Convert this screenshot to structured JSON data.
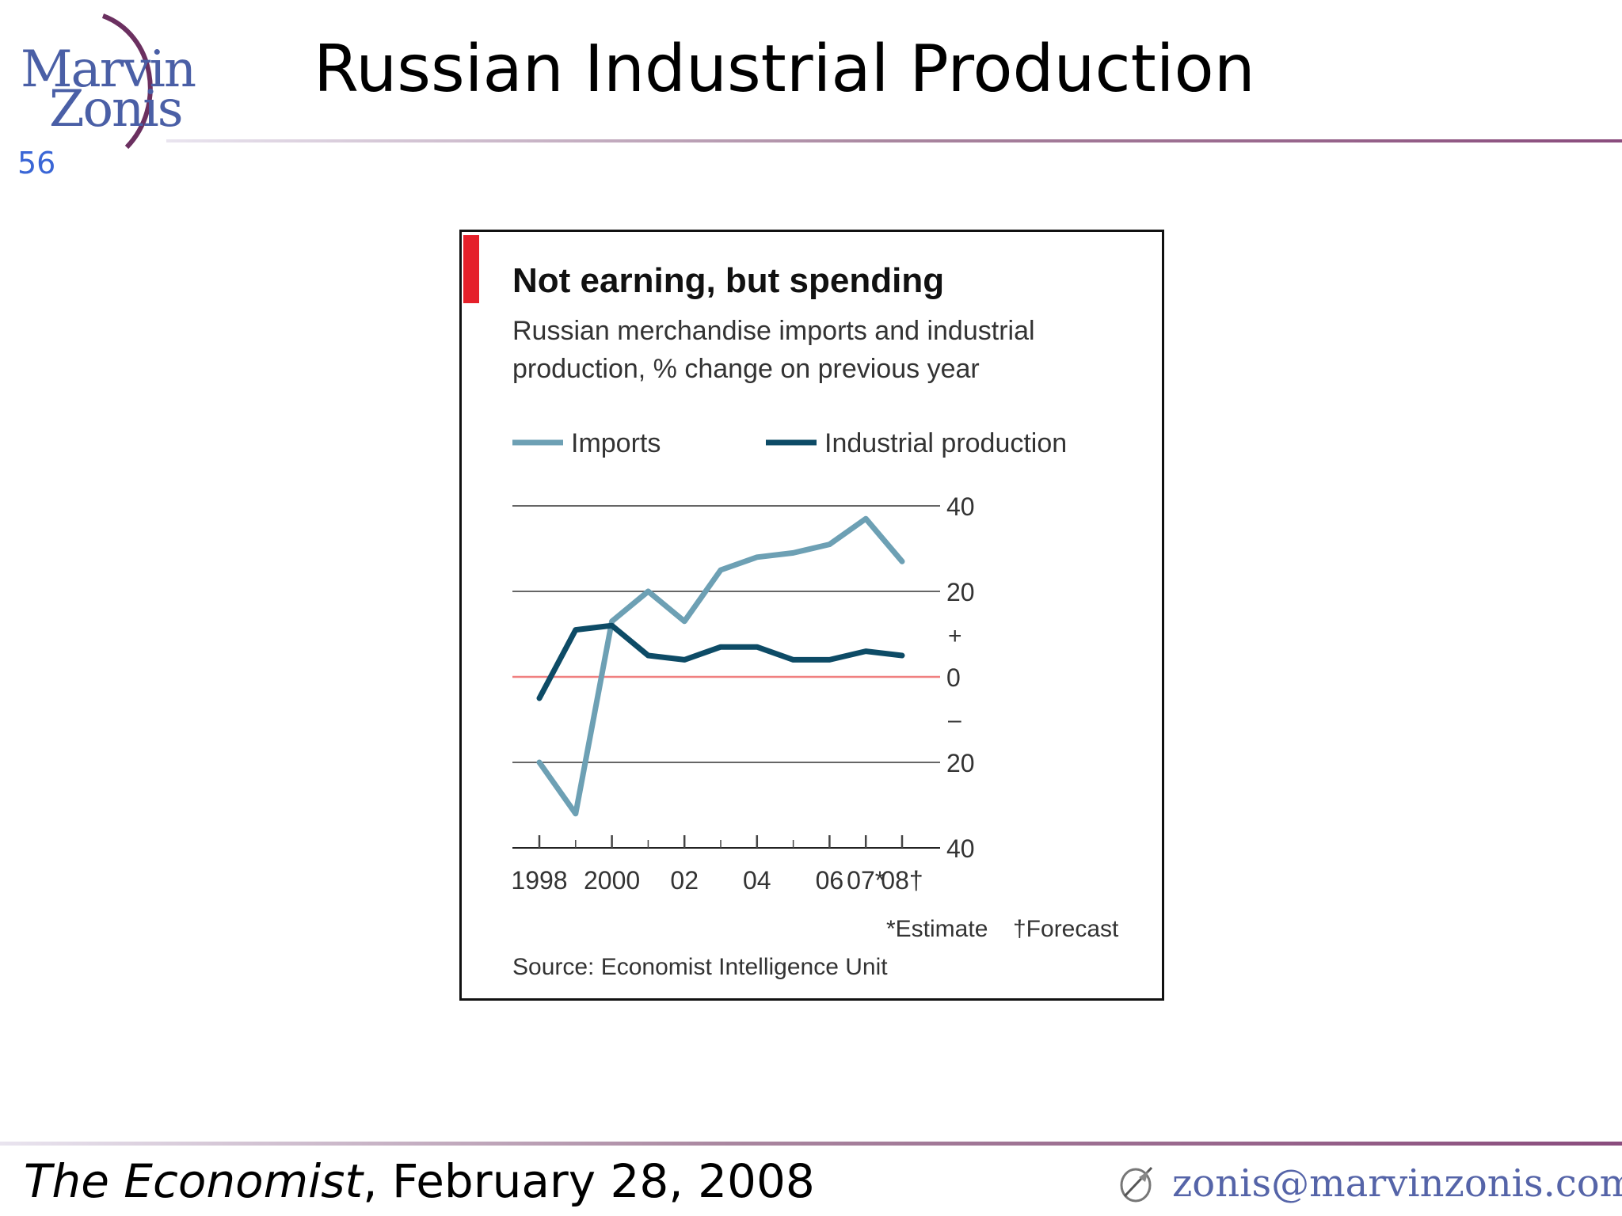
{
  "slide": {
    "number": "56",
    "title": "Russian Industrial Production",
    "logo_line1": "Marvin",
    "logo_line2": "Zonis",
    "citation_source": "The Economist",
    "citation_date": ", February 28, 2008",
    "email": "zonis@marvinzonis.com"
  },
  "colors": {
    "imports": "#6da0b4",
    "industrial_production": "#0d4b66",
    "zero_line": "#f08080",
    "accent_tab": "#e5202a"
  },
  "chart_data": {
    "type": "line",
    "title": "Not earning, but spending",
    "subtitle_line1": "Russian merchandise imports and industrial",
    "subtitle_line2": "production, % change on previous year",
    "x": [
      1998,
      1999,
      2000,
      2001,
      2002,
      2003,
      2004,
      2005,
      2006,
      2007,
      2008
    ],
    "x_tick_labels": [
      {
        "x": 1998,
        "label": "1998"
      },
      {
        "x": 2000,
        "label": "2000"
      },
      {
        "x": 2002,
        "label": "02"
      },
      {
        "x": 2004,
        "label": "04"
      },
      {
        "x": 2006,
        "label": "06"
      },
      {
        "x": 2007,
        "label": "07*"
      },
      {
        "x": 2008,
        "label": "08†"
      }
    ],
    "series": [
      {
        "name": "Imports",
        "values": [
          -20,
          -32,
          13,
          20,
          13,
          25,
          28,
          29,
          31,
          37,
          27
        ]
      },
      {
        "name": "Industrial production",
        "values": [
          -5,
          11,
          12,
          5,
          4,
          7,
          7,
          4,
          4,
          6,
          5
        ]
      }
    ],
    "ylim": [
      -40,
      40
    ],
    "y_ticks": [
      {
        "value": 40,
        "label": "40"
      },
      {
        "value": 20,
        "label": "20"
      },
      {
        "value": 0,
        "label": "0"
      },
      {
        "value": -20,
        "label": "20"
      },
      {
        "value": -40,
        "label": "40"
      }
    ],
    "y_sign_plus": "+",
    "y_sign_minus": "–",
    "legend": [
      "Imports",
      "Industrial production"
    ],
    "legend_position": "top",
    "notes": {
      "estimate": "*Estimate",
      "forecast": "†Forecast",
      "source": "Source: Economist Intelligence Unit"
    },
    "grid": true
  }
}
